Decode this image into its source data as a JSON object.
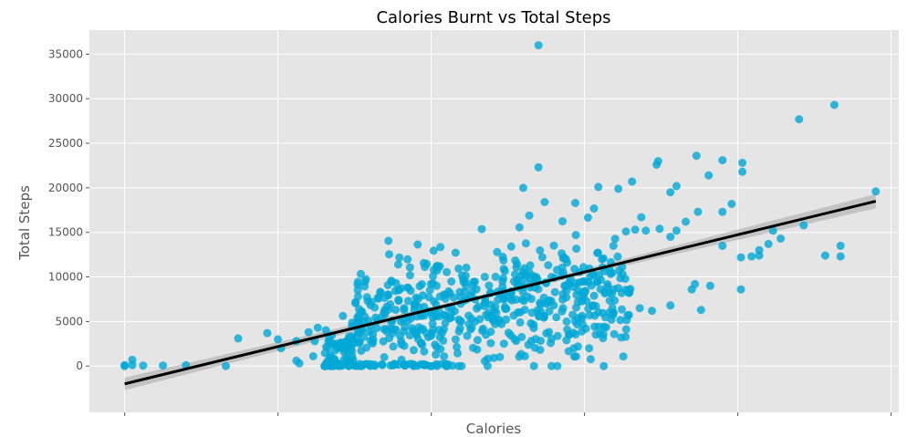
{
  "chart_data": {
    "type": "scatter",
    "title": "Calories Burnt vs Total Steps",
    "xlabel": "Calories",
    "ylabel": "Total Steps",
    "xlim": [
      -230,
      5050
    ],
    "ylim": [
      -5200,
      37700
    ],
    "yticks": [
      0,
      5000,
      10000,
      15000,
      20000,
      25000,
      30000,
      35000
    ],
    "xticks": [
      0,
      1000,
      2000,
      3000,
      4000,
      5000
    ],
    "xtick_labels_visible": false,
    "grid": true,
    "background": "#e5e5e5",
    "point_color": "#00a8d6",
    "fit_color": "#000000",
    "regression": {
      "x0": 0,
      "y0": -2000,
      "x1": 4900,
      "y1": 18500
    },
    "confidence_band": {
      "at_x0_halfwidth": 700,
      "at_x1_halfwidth": 800
    },
    "outliers": [
      [
        0,
        0
      ],
      [
        0,
        100
      ],
      [
        50,
        700
      ],
      [
        50,
        100
      ],
      [
        120,
        50
      ],
      [
        250,
        50
      ],
      [
        400,
        100
      ],
      [
        660,
        0
      ],
      [
        740,
        3100
      ],
      [
        930,
        3700
      ],
      [
        1000,
        3000
      ],
      [
        1020,
        2000
      ],
      [
        1120,
        2800
      ],
      [
        1120,
        600
      ],
      [
        1140,
        300
      ],
      [
        1200,
        3800
      ],
      [
        1230,
        1100
      ],
      [
        1240,
        2800
      ],
      [
        1260,
        4300
      ],
      [
        2700,
        36000
      ],
      [
        2700,
        22300
      ],
      [
        4630,
        29300
      ],
      [
        4400,
        27700
      ],
      [
        4570,
        12400
      ],
      [
        4670,
        12300
      ],
      [
        4670,
        13500
      ],
      [
        4430,
        15800
      ],
      [
        4230,
        15200
      ],
      [
        4280,
        14300
      ],
      [
        4900,
        19600
      ],
      [
        4030,
        22800
      ],
      [
        4030,
        21800
      ],
      [
        3900,
        23100
      ],
      [
        3810,
        21400
      ],
      [
        3730,
        23600
      ],
      [
        3600,
        20200
      ],
      [
        3560,
        19500
      ],
      [
        3480,
        23000
      ],
      [
        3470,
        22600
      ],
      [
        3310,
        20700
      ],
      [
        3220,
        19900
      ],
      [
        3090,
        20100
      ],
      [
        2940,
        18300
      ],
      [
        2600,
        20000
      ],
      [
        2640,
        16900
      ],
      [
        2740,
        18400
      ],
      [
        3720,
        9200
      ],
      [
        3700,
        8600
      ],
      [
        3820,
        9000
      ],
      [
        3900,
        13500
      ],
      [
        4020,
        8600
      ],
      [
        4020,
        12200
      ],
      [
        4090,
        12300
      ],
      [
        4140,
        13000
      ],
      [
        4140,
        12400
      ],
      [
        4200,
        13700
      ],
      [
        3760,
        6300
      ],
      [
        3560,
        6800
      ],
      [
        3440,
        6200
      ],
      [
        3360,
        6500
      ],
      [
        2930,
        2000
      ],
      [
        3030,
        2000
      ],
      [
        2670,
        0
      ],
      [
        3270,
        15100
      ],
      [
        3330,
        15300
      ],
      [
        3370,
        16700
      ],
      [
        3400,
        15200
      ],
      [
        3490,
        15400
      ],
      [
        3560,
        14500
      ],
      [
        3600,
        15200
      ],
      [
        3660,
        16200
      ],
      [
        3740,
        17300
      ],
      [
        3900,
        17300
      ],
      [
        3960,
        18200
      ]
    ]
  }
}
